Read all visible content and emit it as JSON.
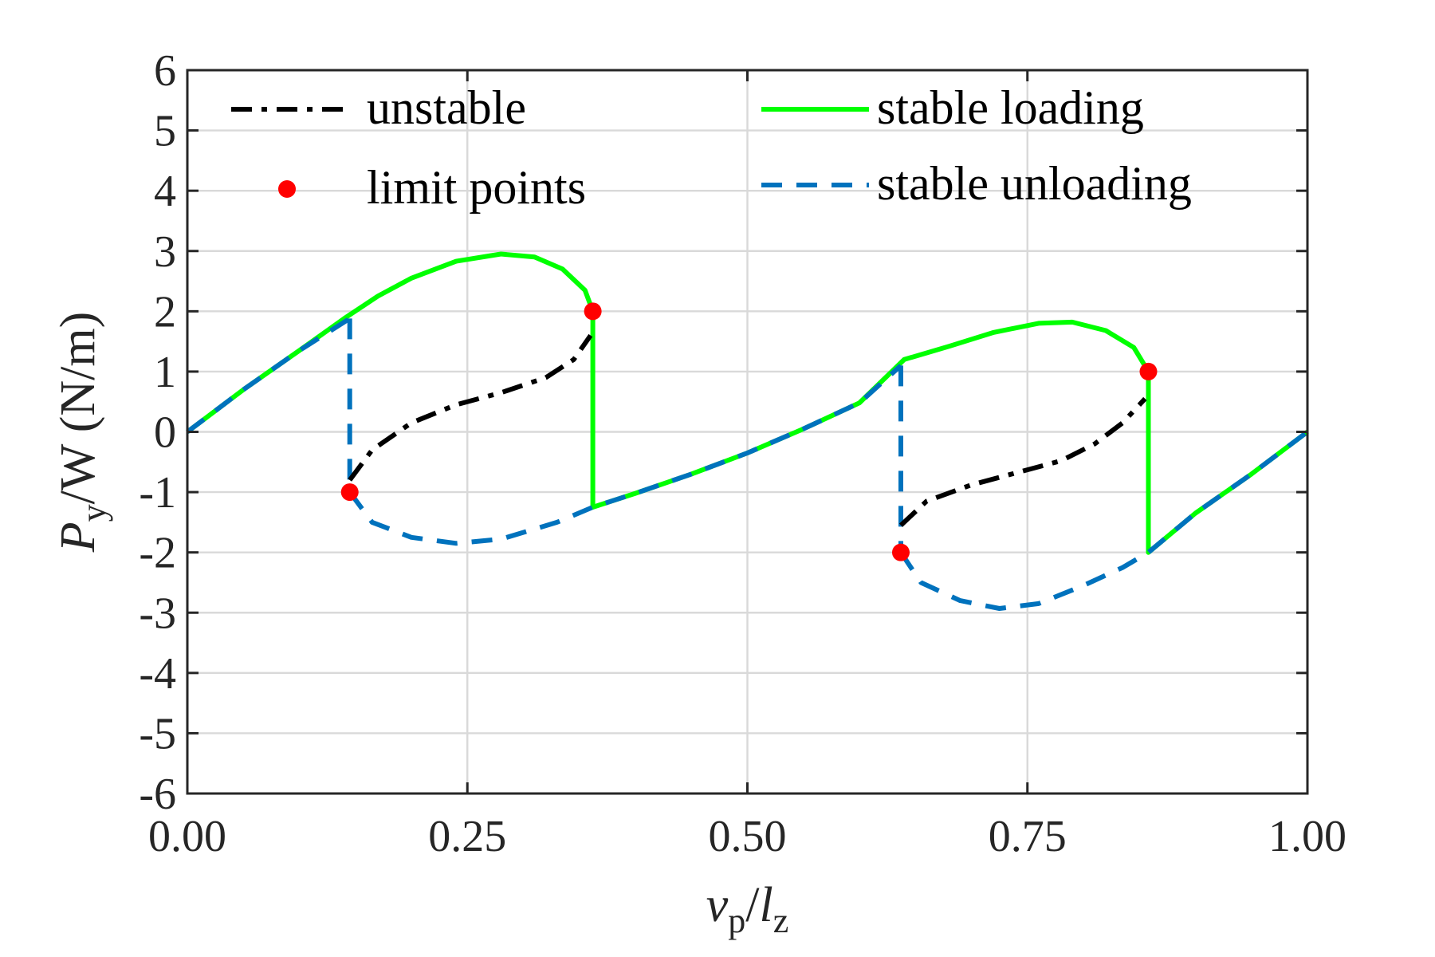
{
  "chart_data": {
    "type": "line",
    "xlabel": {
      "var": "v",
      "varsub": "p",
      "sep": "/",
      "var2": "l",
      "var2sub": "z"
    },
    "ylabel": {
      "var": "P",
      "varsub": "y",
      "rest": "/W (N/m)"
    },
    "xlim": [
      0,
      1
    ],
    "ylim": [
      -6,
      6
    ],
    "x_ticks": [
      "0.00",
      "0.25",
      "0.50",
      "0.75",
      "1.00"
    ],
    "y_ticks": [
      "6",
      "5",
      "4",
      "3",
      "2",
      "1",
      "0",
      "-1",
      "-2",
      "-3",
      "-4",
      "-5",
      "-6"
    ],
    "grid": true,
    "legend_position": "top",
    "colors": {
      "unstable": "#000000",
      "stable_loading": "#00ff00",
      "stable_unloading": "#0072bd",
      "limit_points": "#ff0000"
    },
    "legend": [
      {
        "key": "unstable",
        "label": "unstable",
        "style": "dashdot"
      },
      {
        "key": "stable_loading",
        "label": "stable loading",
        "style": "solid"
      },
      {
        "key": "limit_points",
        "label": "limit points",
        "style": "marker"
      },
      {
        "key": "stable_unloading",
        "label": "stable unloading",
        "style": "dashed"
      }
    ],
    "series": [
      {
        "name": "stable loading",
        "style": "solid",
        "points": [
          [
            0,
            0
          ],
          [
            0.05,
            0.7
          ],
          [
            0.1,
            1.35
          ],
          [
            0.14,
            1.88
          ],
          [
            0.17,
            2.25
          ],
          [
            0.2,
            2.55
          ],
          [
            0.24,
            2.83
          ],
          [
            0.28,
            2.95
          ],
          [
            0.31,
            2.9
          ],
          [
            0.335,
            2.7
          ],
          [
            0.355,
            2.35
          ],
          [
            0.362,
            2.0
          ],
          [
            0.362,
            -1.25
          ],
          [
            0.4,
            -1.02
          ],
          [
            0.45,
            -0.7
          ],
          [
            0.5,
            -0.35
          ],
          [
            0.55,
            0.05
          ],
          [
            0.6,
            0.48
          ],
          [
            0.64,
            1.2
          ],
          [
            0.68,
            1.42
          ],
          [
            0.72,
            1.65
          ],
          [
            0.76,
            1.8
          ],
          [
            0.79,
            1.82
          ],
          [
            0.82,
            1.68
          ],
          [
            0.845,
            1.4
          ],
          [
            0.858,
            1.0
          ],
          [
            0.858,
            -2.0
          ],
          [
            0.9,
            -1.35
          ],
          [
            0.95,
            -0.7
          ],
          [
            1.0,
            0.0
          ]
        ]
      },
      {
        "name": "stable unloading",
        "style": "dashed",
        "points": [
          [
            0,
            0
          ],
          [
            0.05,
            0.7
          ],
          [
            0.1,
            1.35
          ],
          [
            0.145,
            1.88
          ]
        ]
      },
      {
        "name": "stable unloading",
        "style": "dashed",
        "points": [
          [
            0.145,
            1.88
          ],
          [
            0.145,
            -1.0
          ]
        ]
      },
      {
        "name": "stable unloading",
        "style": "dashed",
        "points": [
          [
            0.145,
            -1.0
          ],
          [
            0.165,
            -1.5
          ],
          [
            0.2,
            -1.75
          ],
          [
            0.24,
            -1.85
          ],
          [
            0.28,
            -1.78
          ],
          [
            0.33,
            -1.5
          ],
          [
            0.362,
            -1.25
          ],
          [
            0.4,
            -1.02
          ],
          [
            0.45,
            -0.7
          ],
          [
            0.5,
            -0.35
          ],
          [
            0.55,
            0.05
          ],
          [
            0.6,
            0.48
          ],
          [
            0.637,
            1.1
          ]
        ]
      },
      {
        "name": "stable unloading",
        "style": "dashed",
        "points": [
          [
            0.637,
            1.1
          ],
          [
            0.637,
            -2.0
          ]
        ]
      },
      {
        "name": "stable unloading",
        "style": "dashed",
        "points": [
          [
            0.637,
            -2.0
          ],
          [
            0.655,
            -2.5
          ],
          [
            0.69,
            -2.8
          ],
          [
            0.725,
            -2.93
          ],
          [
            0.76,
            -2.85
          ],
          [
            0.8,
            -2.55
          ],
          [
            0.835,
            -2.25
          ],
          [
            0.858,
            -2.0
          ],
          [
            0.9,
            -1.35
          ],
          [
            0.95,
            -0.7
          ],
          [
            1.0,
            0.0
          ]
        ]
      },
      {
        "name": "unstable",
        "style": "dashdot",
        "points": [
          [
            0.145,
            -0.8
          ],
          [
            0.165,
            -0.3
          ],
          [
            0.2,
            0.15
          ],
          [
            0.24,
            0.45
          ],
          [
            0.28,
            0.65
          ],
          [
            0.32,
            0.9
          ],
          [
            0.345,
            1.2
          ],
          [
            0.36,
            1.6
          ]
        ]
      },
      {
        "name": "unstable",
        "style": "dashdot",
        "points": [
          [
            0.637,
            -1.55
          ],
          [
            0.66,
            -1.15
          ],
          [
            0.7,
            -0.88
          ],
          [
            0.74,
            -0.68
          ],
          [
            0.78,
            -0.48
          ],
          [
            0.81,
            -0.2
          ],
          [
            0.835,
            0.15
          ],
          [
            0.855,
            0.55
          ]
        ]
      }
    ],
    "limit_points": [
      [
        0.145,
        -1.0
      ],
      [
        0.362,
        2.0
      ],
      [
        0.637,
        -2.0
      ],
      [
        0.858,
        1.0
      ]
    ]
  }
}
